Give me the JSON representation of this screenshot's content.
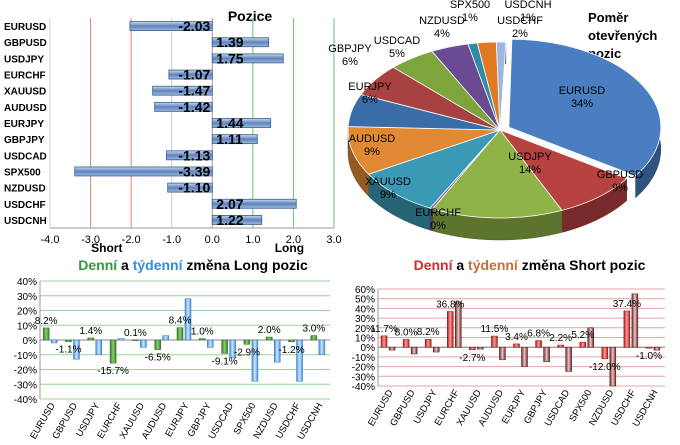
{
  "chart_data": [
    {
      "type": "bar",
      "orientation": "horizontal",
      "title": "Pozice",
      "categories": [
        "EURUSD",
        "GBPUSD",
        "USDJPY",
        "EURCHF",
        "XAUUSD",
        "AUDUSD",
        "EURJPY",
        "GBPJPY",
        "USDCAD",
        "SPX500",
        "NZDUSD",
        "USDCHF",
        "USDCNH"
      ],
      "values": [
        -2.03,
        1.39,
        1.75,
        -1.07,
        -1.47,
        -1.42,
        1.44,
        1.11,
        -1.13,
        -3.39,
        -1.1,
        2.07,
        1.22
      ],
      "value_labels": [
        "-2.03",
        "1.39",
        "1.75",
        "-1.07",
        "-1.47",
        "-1.42",
        "1.44",
        "1.11",
        "-1.13",
        "-3.39",
        "-1.10",
        "2.07",
        "1.22"
      ],
      "xlim": [
        -4,
        3
      ],
      "xticks": [
        "-4.0",
        "-3.0",
        "-2.0",
        "-1.0",
        "0.0",
        "1.0",
        "2.0",
        "3.0"
      ],
      "xtick_values": [
        -4,
        -3,
        -2,
        -1,
        0,
        1,
        2,
        3
      ],
      "annotations": [
        "Short",
        "Long"
      ]
    },
    {
      "type": "pie",
      "title": "Poměr otevřených pozic",
      "labels": [
        "EURUSD",
        "GBPUSD",
        "USDJPY",
        "EURCHF",
        "XAUUSD",
        "AUDUSD",
        "EURJPY",
        "GBPJPY",
        "USDCAD",
        "NZDUSD",
        "SPX500",
        "USDCHF",
        "USDCNH"
      ],
      "values": [
        34,
        9,
        14,
        0,
        9,
        9,
        6,
        6,
        5,
        4,
        1,
        2,
        1
      ],
      "value_labels": [
        "34%",
        "9%",
        "14%",
        "0%",
        "9%",
        "9%",
        "6%",
        "6%",
        "5%",
        "4%",
        "1%",
        "2%",
        "1%"
      ],
      "colors": [
        "#4a7ec0",
        "#b84240",
        "#8fb347",
        "#7f5fa6",
        "#3a9ab6",
        "#e28a33",
        "#3b6ea8",
        "#a84240",
        "#7ea53c",
        "#6a4a92",
        "#2f8ca8",
        "#e07a22",
        "#9bb7dc"
      ]
    },
    {
      "type": "bar",
      "title_parts": [
        "Denní",
        "a",
        "týdenní",
        "změna Long pozic"
      ],
      "categories": [
        "EURUSD",
        "GBPUSD",
        "USDJPY",
        "EURCHF",
        "XAUUSD",
        "AUDUSD",
        "EURJPY",
        "GBPJPY",
        "USDCAD",
        "SPX500",
        "NZDUSD",
        "USDCHF",
        "USDCNH"
      ],
      "series": [
        {
          "name": "Denní",
          "values": [
            8.2,
            -1.1,
            1.4,
            -15.7,
            0.1,
            -6.5,
            8.4,
            1.0,
            -9.1,
            -2.9,
            2.0,
            -1.2,
            3.0
          ]
        },
        {
          "name": "týdenní",
          "values": [
            -2,
            -13,
            -10,
            1,
            -5,
            3,
            28,
            -5,
            -12,
            -28,
            -15,
            -28,
            -10
          ]
        }
      ],
      "value_labels": [
        "8.2%",
        "-1.1%",
        "1.4%",
        "-15.7%",
        "0.1%",
        "-6.5%",
        "8.4%",
        "1.0%",
        "-9.1%",
        "-2.9%",
        "2.0%",
        "-1.2%",
        "3.0%"
      ],
      "ylim": [
        -40,
        40
      ],
      "yticks": [
        "40%",
        "30%",
        "20%",
        "10%",
        "0%",
        "-10%",
        "-20%",
        "-30%",
        "-40%"
      ],
      "ytick_values": [
        40,
        30,
        20,
        10,
        0,
        -10,
        -20,
        -30,
        -40
      ],
      "colors": {
        "daily": "#4a9a3a",
        "weekly": "#5aa3e8",
        "title_daily": "#2e9a3c",
        "title_weekly": "#2f8fd8"
      }
    },
    {
      "type": "bar",
      "title_parts": [
        "Denní",
        "a",
        "týdenní",
        "změna Short pozic"
      ],
      "categories": [
        "EURUSD",
        "GBPUSD",
        "USDJPY",
        "EURCHF",
        "XAUUSD",
        "AUDUSD",
        "EURJPY",
        "GBPJPY",
        "USDCAD",
        "SPX500",
        "NZDUSD",
        "USDCHF",
        "USDCNH"
      ],
      "series": [
        {
          "name": "Denní",
          "values": [
            11.7,
            8.0,
            8.2,
            36.8,
            -2.7,
            11.5,
            3.4,
            6.8,
            2.2,
            5.2,
            -12.0,
            37.4,
            -1.0
          ]
        },
        {
          "name": "týdenní",
          "values": [
            -3,
            -7,
            -5,
            47,
            -2,
            -13,
            -20,
            -15,
            -25,
            20,
            -40,
            55,
            -3
          ]
        }
      ],
      "value_labels": [
        "11.7%",
        "8.0%",
        "8.2%",
        "36.8%",
        "-2.7%",
        "11.5%",
        "3.4%",
        "6.8%",
        "2.2%",
        "5.2%",
        "-12.0%",
        "37.4%",
        "-1.0%"
      ],
      "ylim": [
        -40,
        60
      ],
      "yticks": [
        "60%",
        "50%",
        "40%",
        "30%",
        "20%",
        "10%",
        "0%",
        "-10%",
        "-20%",
        "-30%",
        "-40%"
      ],
      "ytick_values": [
        60,
        50,
        40,
        30,
        20,
        10,
        0,
        -10,
        -20,
        -30,
        -40
      ],
      "colors": {
        "daily": "#d42a2a",
        "weekly": "#8a2f2f",
        "title_daily": "#d22b2b",
        "title_weekly": "#c0703a"
      }
    }
  ]
}
